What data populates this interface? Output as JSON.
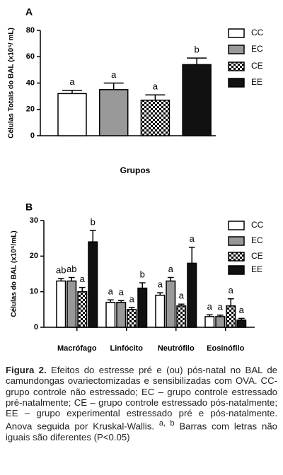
{
  "chart_data": [
    {
      "type": "bar",
      "panel": "A",
      "ylabel": "Células Totais do BAL (x10⁵/ mL)",
      "xlabel": "Grupos",
      "categories": [
        null
      ],
      "ylim": [
        0,
        80
      ],
      "yticks": [
        0,
        20,
        40,
        60,
        80
      ],
      "series": [
        {
          "name": "CC",
          "color": "#ffffff",
          "values": [
            32
          ],
          "errors": [
            2.5
          ],
          "letters": [
            "a"
          ]
        },
        {
          "name": "EC",
          "color": "#999999",
          "values": [
            35
          ],
          "errors": [
            5
          ],
          "letters": [
            "a"
          ]
        },
        {
          "name": "CE",
          "color": "#000000",
          "fill_pattern": "checker",
          "values": [
            27
          ],
          "errors": [
            4
          ],
          "letters": [
            "a"
          ]
        },
        {
          "name": "EE",
          "color": "#111111",
          "values": [
            54
          ],
          "errors": [
            5
          ],
          "letters": [
            "b"
          ]
        }
      ]
    },
    {
      "type": "bar",
      "panel": "B",
      "ylabel": "Células do BAL (x10⁵/mL)",
      "categories": [
        "Macrófago",
        "Linfócito",
        "Neutrófilo",
        "Eosinófilo"
      ],
      "ylim": [
        0,
        30
      ],
      "yticks": [
        0,
        10,
        20,
        30
      ],
      "series": [
        {
          "name": "CC",
          "color": "#ffffff",
          "values": [
            13,
            7,
            9,
            3
          ],
          "errors": [
            0.7,
            0.7,
            0.7,
            0.5
          ],
          "letters": [
            "ab",
            "a",
            "a",
            "a"
          ]
        },
        {
          "name": "EC",
          "color": "#999999",
          "values": [
            13,
            7,
            13,
            3
          ],
          "errors": [
            1,
            0.5,
            1,
            0.4
          ],
          "letters": [
            "ab",
            "a",
            "a",
            "a"
          ]
        },
        {
          "name": "CE",
          "color": "#000000",
          "fill_pattern": "checker",
          "values": [
            10,
            5,
            6,
            6
          ],
          "errors": [
            1.2,
            0.6,
            0.5,
            2
          ],
          "letters": [
            "a",
            "a",
            "a",
            "a"
          ]
        },
        {
          "name": "EE",
          "color": "#111111",
          "values": [
            24,
            11,
            18,
            2
          ],
          "errors": [
            3.2,
            1.5,
            4.5,
            0.5
          ],
          "letters": [
            "b",
            "b",
            "a",
            "a"
          ]
        }
      ]
    }
  ],
  "caption": {
    "label": "Figura 2.",
    "text": "Efeitos do estresse pré e (ou) pós-natal no BAL de camundongas ovariectomizadas e sensibilizadas com OVA. CC- grupo controle não estressado; EC – grupo controle estressado pré-natalmente; CE – grupo controle estressado pós-natalmente; EE – grupo experimental estressado pré e pós-natalmente. Anova seguida por Kruskal-Wallis.",
    "superscript": "a, b",
    "text_after": "Barras com letras não iguais são diferentes (P<0.05)"
  }
}
